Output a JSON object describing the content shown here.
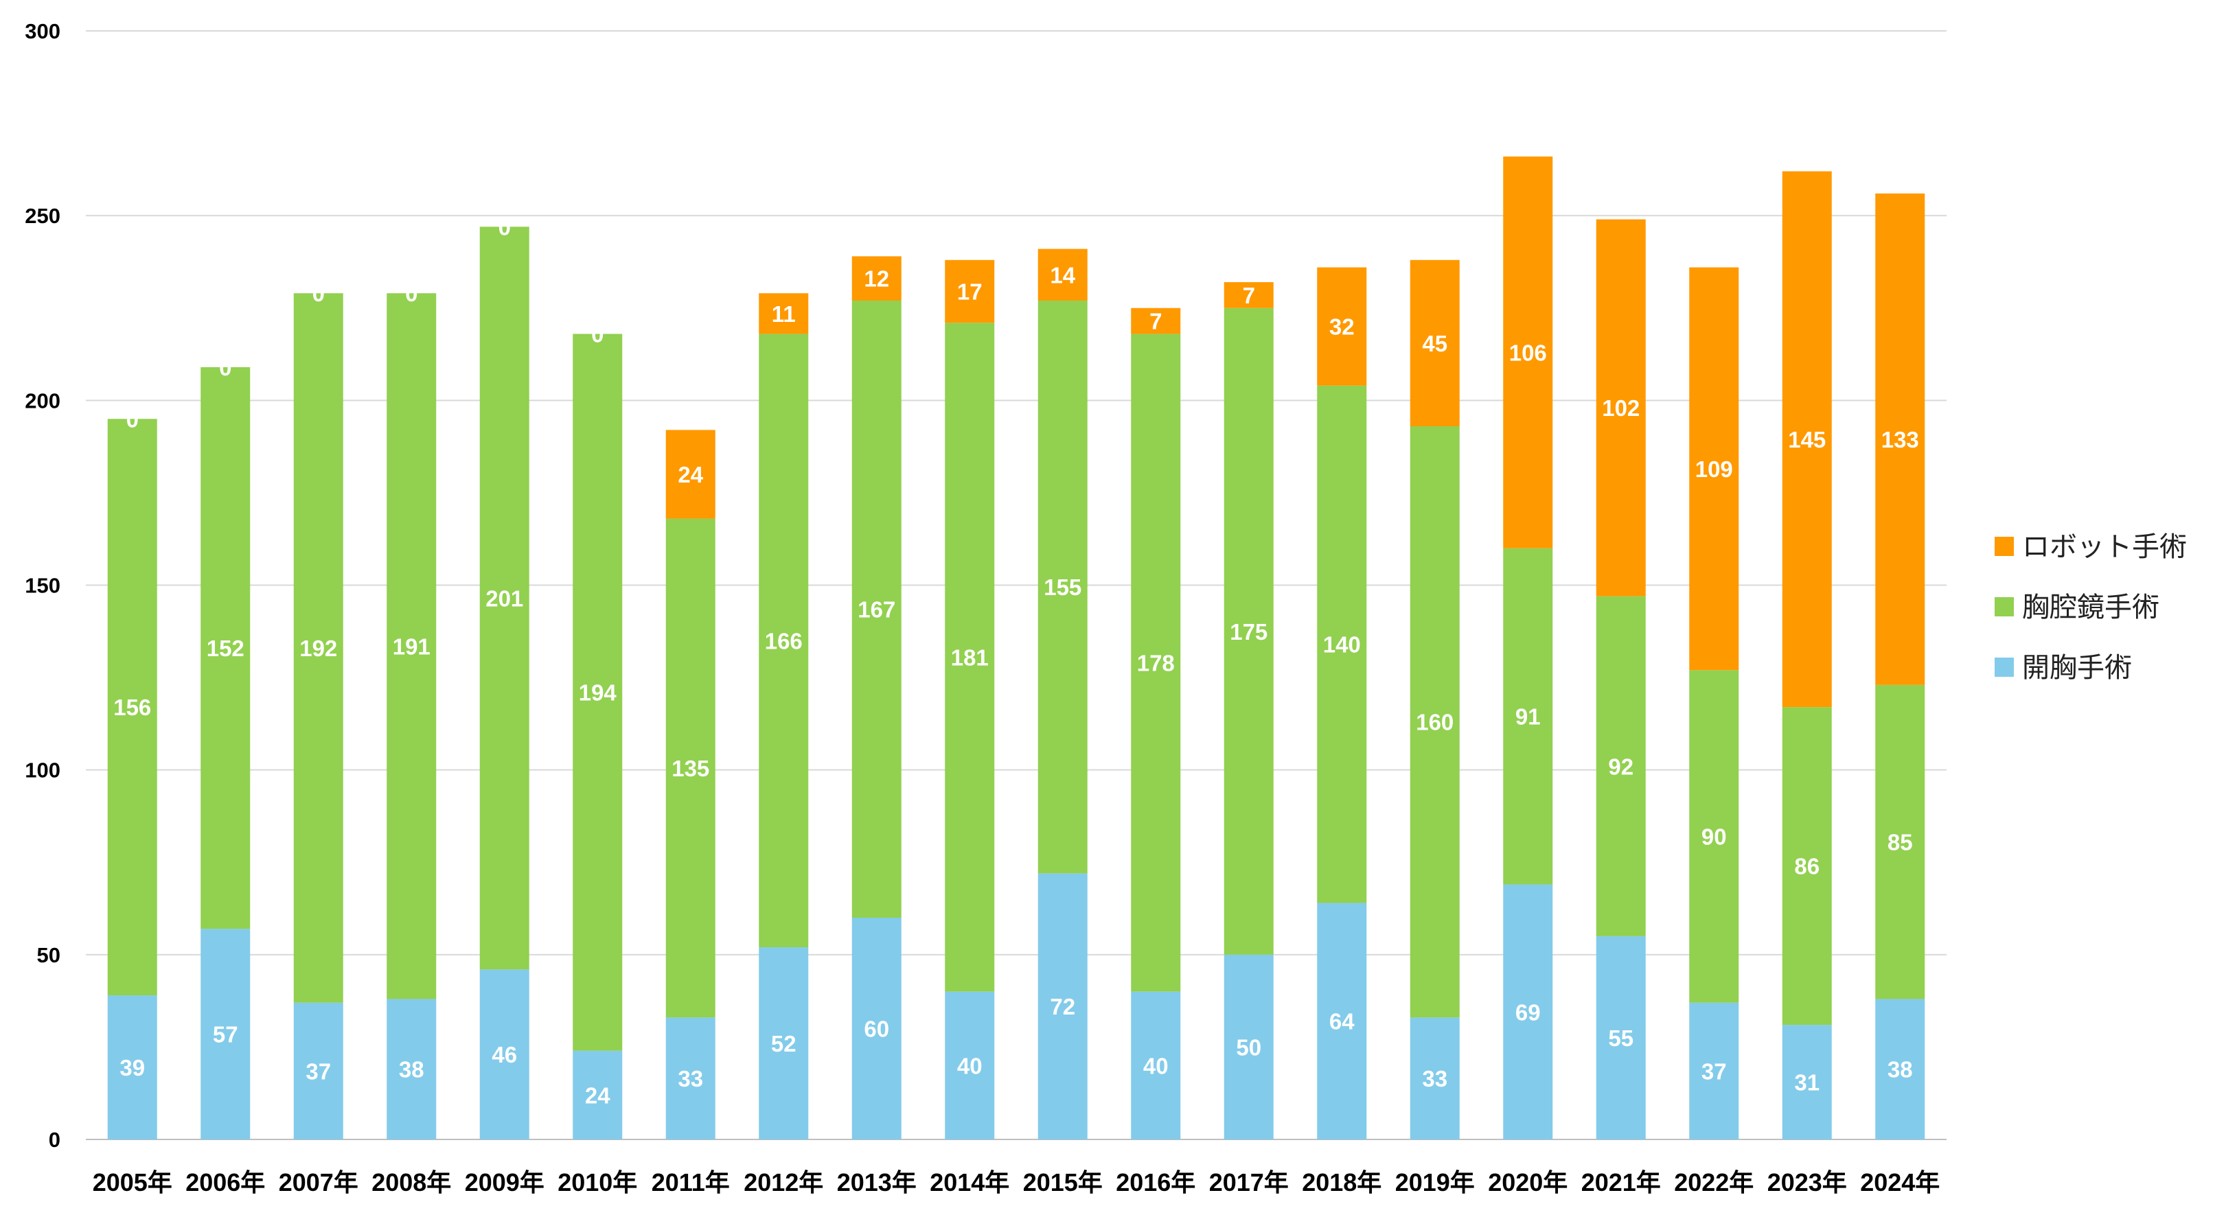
{
  "chart_data": {
    "type": "bar",
    "stacked": true,
    "title": "",
    "xlabel": "",
    "ylabel": "",
    "ylim": [
      0,
      300
    ],
    "yticks": [
      0,
      50,
      100,
      150,
      200,
      250,
      300
    ],
    "grid": true,
    "legend_position": "right",
    "categories": [
      "2005年",
      "2006年",
      "2007年",
      "2008年",
      "2009年",
      "2010年",
      "2011年",
      "2012年",
      "2013年",
      "2014年",
      "2015年",
      "2016年",
      "2017年",
      "2018年",
      "2019年",
      "2020年",
      "2021年",
      "2022年",
      "2023年",
      "2024年"
    ],
    "series": [
      {
        "name": "開胸手術",
        "color": "#83cbea",
        "values": [
          39,
          57,
          37,
          38,
          46,
          24,
          33,
          52,
          60,
          40,
          72,
          40,
          50,
          64,
          33,
          69,
          55,
          37,
          31,
          38
        ]
      },
      {
        "name": "胸腔鏡手術",
        "color": "#92d050",
        "values": [
          156,
          152,
          192,
          191,
          201,
          194,
          135,
          166,
          167,
          181,
          155,
          178,
          175,
          140,
          160,
          91,
          92,
          90,
          86,
          85
        ]
      },
      {
        "name": "ロボット手術",
        "color": "#ff9900",
        "values": [
          0,
          0,
          0,
          0,
          0,
          0,
          24,
          11,
          12,
          17,
          14,
          7,
          7,
          32,
          45,
          106,
          102,
          109,
          145,
          133
        ]
      }
    ],
    "legend_order": [
      "ロボット手術",
      "胸腔鏡手術",
      "開胸手術"
    ]
  }
}
